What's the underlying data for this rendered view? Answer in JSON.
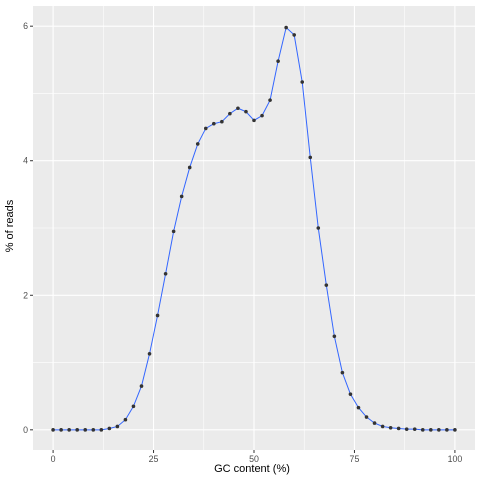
{
  "chart_data": {
    "type": "line",
    "xlabel": "GC content (%)",
    "ylabel": "% of reads",
    "xlim": [
      -5,
      105
    ],
    "ylim": [
      -0.3,
      6.3
    ],
    "x_ticks": [
      0,
      25,
      50,
      75,
      100
    ],
    "y_ticks": [
      0,
      2,
      4,
      6
    ],
    "grid": true,
    "legend": "none",
    "colors": {
      "panel_background": "#ebebeb",
      "grid_major": "#ffffff",
      "line": "#3366ff",
      "point": "#333333"
    },
    "series": [
      {
        "x": [
          0,
          2,
          4,
          6,
          8,
          10,
          12,
          14,
          16,
          18,
          20,
          22,
          24,
          26,
          28,
          30,
          32,
          34,
          36,
          38,
          40,
          42,
          44,
          46,
          48,
          50,
          52,
          54,
          56,
          58,
          60,
          62,
          64,
          66,
          68,
          70,
          72,
          74,
          76,
          78,
          80,
          82,
          84,
          86,
          88,
          90,
          92,
          94,
          96,
          98,
          100
        ],
        "y": [
          0,
          0,
          0,
          0,
          0,
          0,
          0,
          0.02,
          0.05,
          0.15,
          0.35,
          0.65,
          1.13,
          1.7,
          2.32,
          2.95,
          3.47,
          3.9,
          4.25,
          4.48,
          4.55,
          4.58,
          4.7,
          4.78,
          4.73,
          4.6,
          4.67,
          4.9,
          5.48,
          5.98,
          5.87,
          5.17,
          4.05,
          3.0,
          2.15,
          1.39,
          0.85,
          0.53,
          0.33,
          0.19,
          0.1,
          0.05,
          0.03,
          0.02,
          0.01,
          0.01,
          0,
          0,
          0,
          0,
          0
        ]
      }
    ]
  }
}
